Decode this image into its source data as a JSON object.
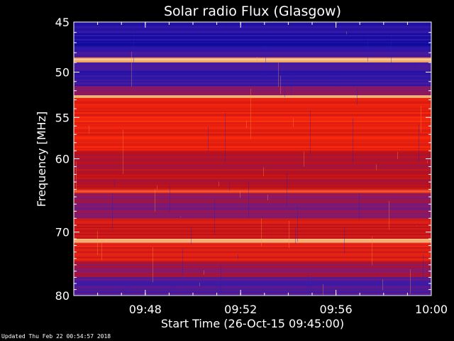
{
  "chart_data": {
    "type": "heatmap",
    "title": "Solar radio Flux (Glasgow)",
    "xlabel": "Start Time (26-Oct-15 09:45:00)",
    "ylabel": "Frequency [MHz]",
    "x_unit": "time",
    "xlim": [
      "09:45:00",
      "10:00:00"
    ],
    "x_ticks": [
      "09:48",
      "09:52",
      "09:56",
      "10:00"
    ],
    "ylim": [
      45,
      80
    ],
    "y_ticks": [
      45,
      50,
      55,
      60,
      70,
      80
    ],
    "y_scale": "log",
    "y_direction": "increasing downward",
    "colormap": [
      "#0a0aa0",
      "#3a1aa8",
      "#8a1a6a",
      "#c41010",
      "#ff2a0a",
      "#ff8a3a",
      "#ffe0a0"
    ],
    "bands": [
      {
        "from_mhz": 45.0,
        "to_mhz": 47.8,
        "level": 0.08
      },
      {
        "from_mhz": 47.8,
        "to_mhz": 48.5,
        "level": 0.2
      },
      {
        "from_mhz": 48.5,
        "to_mhz": 49.0,
        "level": 0.95
      },
      {
        "from_mhz": 49.0,
        "to_mhz": 51.5,
        "level": 0.15
      },
      {
        "from_mhz": 51.5,
        "to_mhz": 52.5,
        "level": 0.35
      },
      {
        "from_mhz": 52.5,
        "to_mhz": 52.8,
        "level": 0.9
      },
      {
        "from_mhz": 52.8,
        "to_mhz": 59.0,
        "level": 0.62
      },
      {
        "from_mhz": 59.0,
        "to_mhz": 64.0,
        "level": 0.48
      },
      {
        "from_mhz": 64.0,
        "to_mhz": 64.5,
        "level": 0.7
      },
      {
        "from_mhz": 64.5,
        "to_mhz": 68.0,
        "level": 0.35
      },
      {
        "from_mhz": 68.0,
        "to_mhz": 71.0,
        "level": 0.55
      },
      {
        "from_mhz": 71.0,
        "to_mhz": 71.6,
        "level": 0.92
      },
      {
        "from_mhz": 71.6,
        "to_mhz": 74.5,
        "level": 0.6
      },
      {
        "from_mhz": 74.5,
        "to_mhz": 77.0,
        "level": 0.4
      },
      {
        "from_mhz": 77.0,
        "to_mhz": 80.0,
        "level": 0.22
      }
    ]
  },
  "footer": {
    "updated": "Updated Thu Feb 22 00:54:57 2018"
  }
}
